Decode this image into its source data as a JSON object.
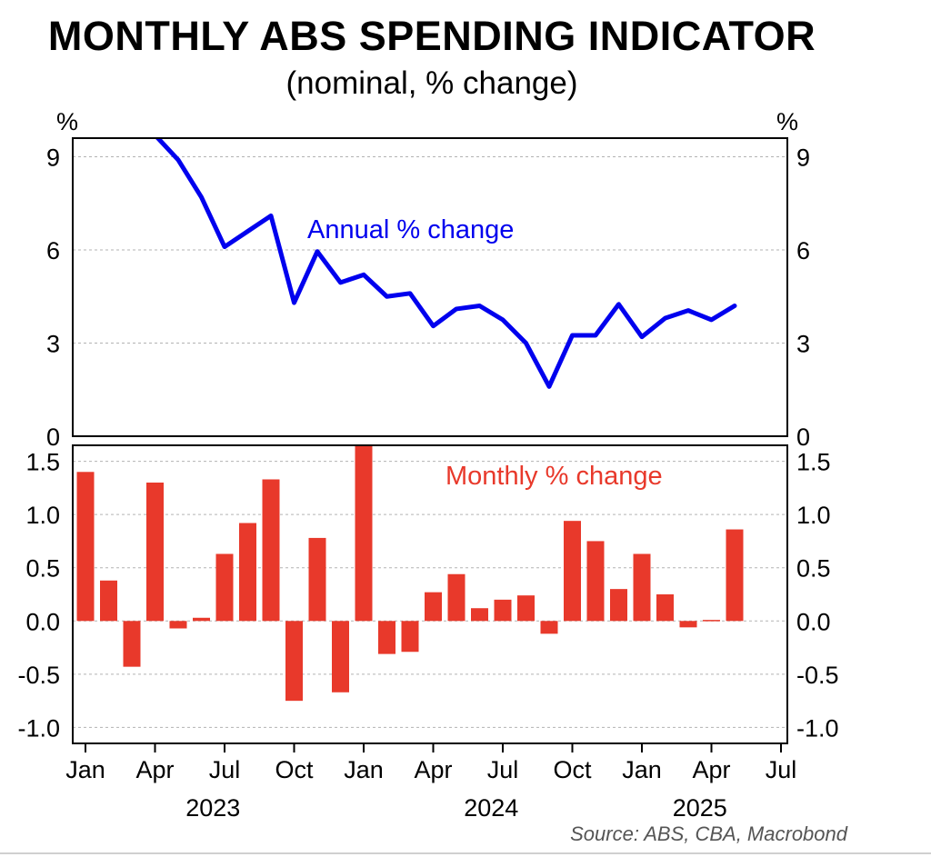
{
  "title": "MONTHLY ABS SPENDING INDICATOR",
  "subtitle": "(nominal, % change)",
  "source": "Source: ABS, CBA, Macrobond",
  "colors": {
    "annual": "#0000ee",
    "monthly": "#e8392b",
    "grid": "#b3b3b3",
    "axis": "#000000"
  },
  "chart_data": [
    {
      "type": "line",
      "unit_left": "%",
      "unit_right": "%",
      "ylim": [
        0,
        9.6
      ],
      "yticks": [
        "0",
        "3",
        "6",
        "9"
      ],
      "grid": true,
      "series": [
        {
          "name": "Annual % change",
          "x": [
            "2023-01",
            "2023-02",
            "2023-03",
            "2023-04",
            "2023-05",
            "2023-06",
            "2023-07",
            "2023-08",
            "2023-09",
            "2023-10",
            "2023-11",
            "2023-12",
            "2024-01",
            "2024-02",
            "2024-03",
            "2024-04",
            "2024-05",
            "2024-06",
            "2024-07",
            "2024-08",
            "2024-09",
            "2024-10",
            "2024-11",
            "2024-12",
            "2025-01",
            "2025-02",
            "2025-03",
            "2025-04",
            "2025-05"
          ],
          "values": [
            null,
            null,
            null,
            9.7,
            8.9,
            7.7,
            6.1,
            6.6,
            7.1,
            4.3,
            5.95,
            4.95,
            5.2,
            4.5,
            4.6,
            3.55,
            4.1,
            4.2,
            3.75,
            3.0,
            1.6,
            3.25,
            3.25,
            4.25,
            3.2,
            3.8,
            4.05,
            3.75,
            4.2
          ]
        }
      ]
    },
    {
      "type": "bar",
      "ylim": [
        -1.15,
        1.65
      ],
      "yticks": [
        "-1.0",
        "-0.5",
        "0.0",
        "0.5",
        "1.0",
        "1.5"
      ],
      "grid": true,
      "x_tick_labels": [
        "Jan",
        "Apr",
        "Jul",
        "Oct",
        "Jan",
        "Apr",
        "Jul",
        "Oct",
        "Jan",
        "Apr",
        "Jul"
      ],
      "x_year_labels": [
        "2023",
        "2024",
        "2025"
      ],
      "series": [
        {
          "name": "Monthly % change",
          "x": [
            "2023-01",
            "2023-02",
            "2023-03",
            "2023-04",
            "2023-05",
            "2023-06",
            "2023-07",
            "2023-08",
            "2023-09",
            "2023-10",
            "2023-11",
            "2023-12",
            "2024-01",
            "2024-02",
            "2024-03",
            "2024-04",
            "2024-05",
            "2024-06",
            "2024-07",
            "2024-08",
            "2024-09",
            "2024-10",
            "2024-11",
            "2024-12",
            "2025-01",
            "2025-02",
            "2025-03",
            "2025-04",
            "2025-05"
          ],
          "values": [
            1.4,
            0.38,
            -0.43,
            1.3,
            -0.07,
            0.03,
            0.63,
            0.92,
            1.33,
            -0.75,
            0.78,
            -0.67,
            1.65,
            -0.31,
            -0.29,
            0.27,
            0.44,
            0.12,
            0.2,
            0.24,
            -0.12,
            0.94,
            0.75,
            0.3,
            0.63,
            0.25,
            -0.06,
            0.01,
            0.86
          ]
        }
      ]
    }
  ]
}
